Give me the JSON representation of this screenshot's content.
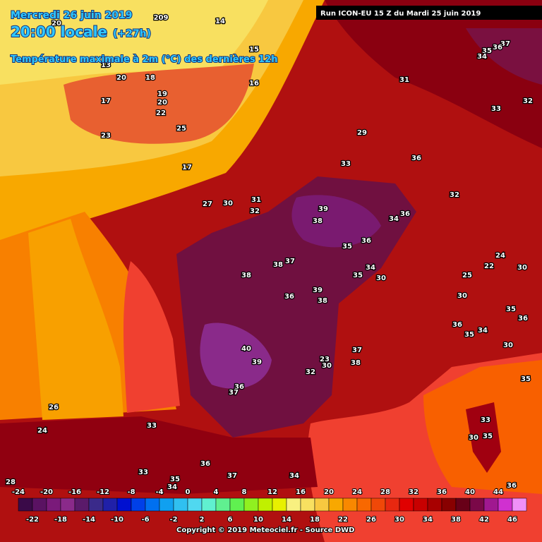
{
  "header": {
    "date": "Mercredi 26 juin 2019",
    "time": "20:00 locale",
    "lead": "(+27h)",
    "subtitle": "Température maximale à 2m (°C) des dernières 12h"
  },
  "run": "Run ICON-EU 15 Z du Mardi 25 juin 2019",
  "map_labels": [
    209,
    14,
    20,
    15,
    13,
    20,
    18,
    16,
    17,
    19,
    20,
    22,
    23,
    25,
    31,
    37,
    35,
    36,
    34,
    33,
    32,
    29,
    36,
    33,
    17,
    31,
    30,
    32,
    27,
    32,
    39,
    36,
    34,
    38,
    35,
    36,
    37,
    38,
    34,
    35,
    30,
    38,
    24,
    22,
    30,
    25,
    39,
    36,
    38,
    30,
    35,
    36,
    36,
    34,
    35,
    30,
    37,
    40,
    23,
    30,
    38,
    39,
    32,
    35,
    36,
    37,
    33,
    30,
    35,
    26,
    24,
    33,
    36,
    33,
    37,
    34,
    28,
    36,
    35,
    34
  ],
  "colorbar": {
    "top_ticks": [
      -24,
      -20,
      -16,
      -12,
      -8,
      -4,
      0,
      4,
      8,
      12,
      16,
      20,
      24,
      28,
      32,
      36,
      40,
      44
    ],
    "bottom_ticks": [
      -22,
      -18,
      -14,
      -10,
      -6,
      -2,
      2,
      6,
      10,
      14,
      18,
      22,
      26,
      30,
      34,
      38,
      42,
      46
    ],
    "colors": [
      "#3a0a48",
      "#5a1262",
      "#7a1a7a",
      "#8a2a8a",
      "#5a1a6a",
      "#3a2a8a",
      "#2020a8",
      "#0010d0",
      "#0040e8",
      "#0070f0",
      "#10a0f0",
      "#30c0f0",
      "#50d8f0",
      "#60f0d0",
      "#60f090",
      "#60f050",
      "#90f020",
      "#c0f000",
      "#e8f000",
      "#f8f080",
      "#f8e060",
      "#f8c840",
      "#f8a800",
      "#f88800",
      "#f86800",
      "#f04808",
      "#e82810",
      "#e00000",
      "#c80000",
      "#a80000",
      "#880000",
      "#680018",
      "#7a0848",
      "#a01890",
      "#d030d0",
      "#f090f8"
    ]
  },
  "copyright": "Copyright © 2019 Meteociel.fr - Source DWD"
}
